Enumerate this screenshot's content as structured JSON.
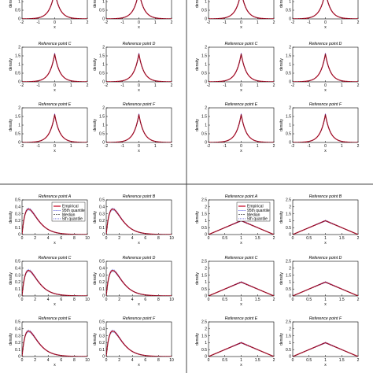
{
  "figure_labels": {
    "x_label": "x",
    "y_label": "density",
    "prefix": "Reference point"
  },
  "legend": {
    "empirical": "Empirical",
    "q95": "95th quantile",
    "median": "Median",
    "q5": "5th quantile"
  },
  "colors": {
    "empirical": "#c8102e",
    "band": "#2b2bd6",
    "median": "#222222",
    "axis": "#000000"
  },
  "chart_data": [
    {
      "type": "line",
      "dist": "laplace",
      "loc": 0,
      "scale": 0.31,
      "xlim": [
        -2,
        2
      ],
      "ylim": [
        0,
        2
      ],
      "xticks": [
        -2,
        -1,
        0,
        1,
        2
      ],
      "yticks": [
        0,
        0.5,
        1,
        1.5,
        2
      ],
      "ytick_labels": [
        "0",
        "0.5",
        "1",
        "1.5",
        "2"
      ],
      "panels": [
        {
          "label": "A",
          "title": ""
        },
        {
          "label": "B",
          "title": ""
        },
        {
          "label": "C",
          "title": "Reference point C"
        },
        {
          "label": "D",
          "title": "Reference point D"
        },
        {
          "label": "E",
          "title": "Reference point E"
        },
        {
          "label": "F",
          "title": "Reference point F"
        }
      ]
    },
    {
      "type": "line",
      "dist": "laplace",
      "loc": 0,
      "scale": 0.31,
      "xlim": [
        -2,
        2
      ],
      "ylim": [
        0,
        2
      ],
      "xticks": [
        -2,
        -1,
        0,
        1,
        2
      ],
      "yticks": [
        0,
        0.5,
        1,
        1.5,
        2
      ],
      "ytick_labels": [
        "0",
        "0.5",
        "1",
        "1.5",
        "2"
      ],
      "panels": [
        {
          "label": "A",
          "title": ""
        },
        {
          "label": "B",
          "title": ""
        },
        {
          "label": "C",
          "title": "Reference point C"
        },
        {
          "label": "D",
          "title": "Reference point D"
        },
        {
          "label": "E",
          "title": "Reference point E"
        },
        {
          "label": "F",
          "title": "Reference point F"
        }
      ]
    },
    {
      "type": "line",
      "dist": "gamma",
      "shape": 2,
      "rate": 1,
      "xlim": [
        0,
        10
      ],
      "ylim": [
        0,
        0.5
      ],
      "xticks": [
        0,
        2,
        4,
        6,
        8,
        10
      ],
      "yticks": [
        0,
        0.1,
        0.2,
        0.3,
        0.4,
        0.5
      ],
      "ytick_labels": [
        "0",
        "0.1",
        "0.2",
        "0.3",
        "0.4",
        "0.5"
      ],
      "panels": [
        {
          "label": "A",
          "title": "Reference point A",
          "legend": true
        },
        {
          "label": "B",
          "title": "Reference point B"
        },
        {
          "label": "C",
          "title": "Reference point C"
        },
        {
          "label": "D",
          "title": "Reference point D"
        },
        {
          "label": "E",
          "title": "Reference point E"
        },
        {
          "label": "F",
          "title": "Reference point F"
        }
      ]
    },
    {
      "type": "line",
      "dist": "triangle",
      "xlim": [
        0,
        2
      ],
      "ylim": [
        0,
        2.5
      ],
      "xticks": [
        0,
        0.5,
        1,
        1.5,
        2
      ],
      "yticks": [
        0,
        0.5,
        1,
        1.5,
        2,
        2.5
      ],
      "ytick_labels": [
        "0",
        "0.5",
        "1",
        "1.5",
        "2",
        "2.5"
      ],
      "panels": [
        {
          "label": "A",
          "title": "Reference point A",
          "legend": true
        },
        {
          "label": "B",
          "title": "Reference point B"
        },
        {
          "label": "C",
          "title": "Reference point C"
        },
        {
          "label": "D",
          "title": "Reference point D"
        },
        {
          "label": "E",
          "title": "Reference point E"
        },
        {
          "label": "F",
          "title": "Reference point F"
        }
      ]
    }
  ]
}
